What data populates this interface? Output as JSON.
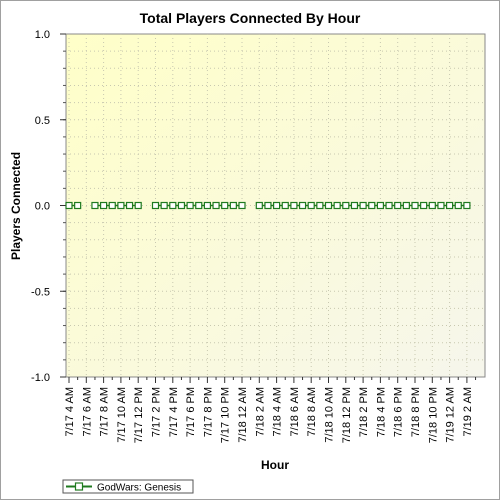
{
  "chart_data": {
    "type": "line",
    "title": "Total Players Connected By Hour",
    "xlabel": "Hour",
    "ylabel": "Players Connected",
    "ylim": [
      -1.0,
      1.0
    ],
    "yticks": [
      "1.0",
      "0.5",
      "0.0",
      "-0.5",
      "-1.0"
    ],
    "yticks_values": [
      1.0,
      0.5,
      0.0,
      -0.5,
      -1.0
    ],
    "categories": [
      "7/17 4 AM",
      "7/17 6 AM",
      "7/17 8 AM",
      "7/17 10 AM",
      "7/17 12 PM",
      "7/17 2 PM",
      "7/17 4 PM",
      "7/17 6 PM",
      "7/17 8 PM",
      "7/17 10 PM",
      "7/18 12 AM",
      "7/18 2 AM",
      "7/18 4 AM",
      "7/18 6 AM",
      "7/18 8 AM",
      "7/18 10 AM",
      "7/18 12 PM",
      "7/18 2 PM",
      "7/18 4 PM",
      "7/18 6 PM",
      "7/18 8 PM",
      "7/18 10 PM",
      "7/19 12 AM",
      "7/19 2 AM"
    ],
    "series": [
      {
        "name": "GodWars: Genesis",
        "color": "#1f7a1f",
        "points": [
          {
            "h": 0,
            "v": 0
          },
          {
            "h": 1,
            "v": 0
          },
          {
            "h": 3,
            "v": 0
          },
          {
            "h": 4,
            "v": 0
          },
          {
            "h": 5,
            "v": 0
          },
          {
            "h": 6,
            "v": 0
          },
          {
            "h": 7,
            "v": 0
          },
          {
            "h": 8,
            "v": 0
          },
          {
            "h": 10,
            "v": 0
          },
          {
            "h": 11,
            "v": 0
          },
          {
            "h": 12,
            "v": 0
          },
          {
            "h": 13,
            "v": 0
          },
          {
            "h": 14,
            "v": 0
          },
          {
            "h": 15,
            "v": 0
          },
          {
            "h": 16,
            "v": 0
          },
          {
            "h": 17,
            "v": 0
          },
          {
            "h": 18,
            "v": 0
          },
          {
            "h": 19,
            "v": 0
          },
          {
            "h": 20,
            "v": 0
          },
          {
            "h": 22,
            "v": 0
          },
          {
            "h": 23,
            "v": 0
          },
          {
            "h": 24,
            "v": 0
          },
          {
            "h": 25,
            "v": 0
          },
          {
            "h": 26,
            "v": 0
          },
          {
            "h": 27,
            "v": 0
          },
          {
            "h": 28,
            "v": 0
          },
          {
            "h": 29,
            "v": 0
          },
          {
            "h": 30,
            "v": 0
          },
          {
            "h": 31,
            "v": 0
          },
          {
            "h": 32,
            "v": 0
          },
          {
            "h": 33,
            "v": 0
          },
          {
            "h": 34,
            "v": 0
          },
          {
            "h": 35,
            "v": 0
          },
          {
            "h": 36,
            "v": 0
          },
          {
            "h": 37,
            "v": 0
          },
          {
            "h": 38,
            "v": 0
          },
          {
            "h": 39,
            "v": 0
          },
          {
            "h": 40,
            "v": 0
          },
          {
            "h": 41,
            "v": 0
          },
          {
            "h": 42,
            "v": 0
          },
          {
            "h": 43,
            "v": 0
          },
          {
            "h": 44,
            "v": 0
          },
          {
            "h": 45,
            "v": 0
          },
          {
            "h": 46,
            "v": 0
          }
        ]
      }
    ],
    "grid": true,
    "legend": "bottom-left",
    "background": "#ffffd8"
  }
}
